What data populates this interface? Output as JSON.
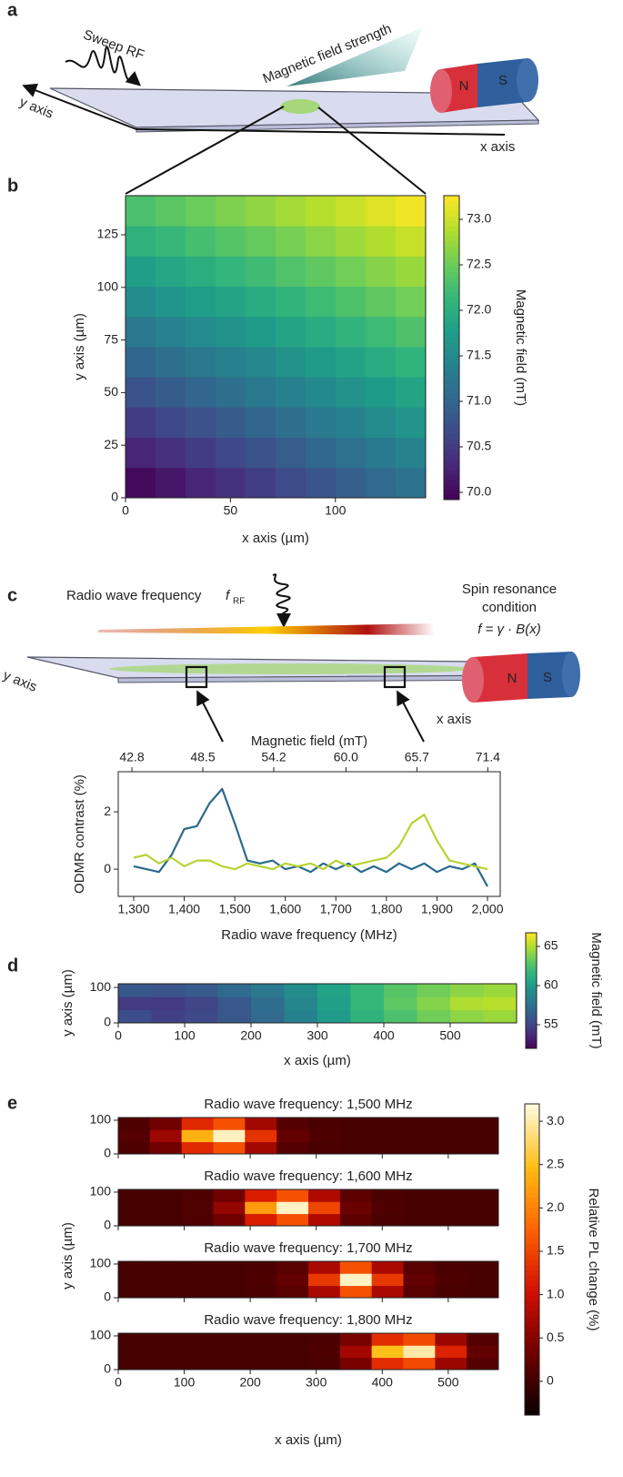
{
  "panel_labels": [
    "a",
    "b",
    "c",
    "d",
    "e"
  ],
  "diagram_a": {
    "sweep": "Sweep RF",
    "field_strength": "Magnetic field strength",
    "y_axis": "y axis",
    "x_axis": "x axis",
    "north": "N",
    "south": "S"
  },
  "diagram_c": {
    "rf_label": "Radio wave frequency",
    "rf_symbol": "f",
    "rf_subscript": "RF",
    "condition_1": "Spin resonance",
    "condition_2": "condition",
    "formula": "f = γ · B(x)",
    "y_axis": "y axis",
    "x_axis": "x axis",
    "north": "N",
    "south": "S"
  },
  "chart_data": [
    {
      "type": "heatmap",
      "x_label": "x axis (µm)",
      "y_label": "y axis (µm)",
      "xlim": [
        0,
        143
      ],
      "ylim": [
        0,
        143.6
      ],
      "xticks": [
        0,
        50,
        100
      ],
      "yticks": [
        0,
        25,
        50,
        75,
        100,
        125
      ],
      "values": [
        [
          70.0,
          70.13,
          70.27,
          70.4,
          70.53,
          70.67,
          70.8,
          70.93,
          71.06,
          71.2
        ],
        [
          70.26,
          70.39,
          70.52,
          70.64,
          70.77,
          70.9,
          71.03,
          71.16,
          71.29,
          71.42
        ],
        [
          70.51,
          70.64,
          70.76,
          70.89,
          71.01,
          71.14,
          71.27,
          71.39,
          71.52,
          71.64
        ],
        [
          70.77,
          70.89,
          71.01,
          71.14,
          71.26,
          71.38,
          71.5,
          71.62,
          71.75,
          71.87
        ],
        [
          71.02,
          71.14,
          71.26,
          71.37,
          71.49,
          71.61,
          71.73,
          71.85,
          71.97,
          72.08
        ],
        [
          71.28,
          71.4,
          71.51,
          71.63,
          71.74,
          71.86,
          71.97,
          72.09,
          72.2,
          72.32
        ],
        [
          71.54,
          71.65,
          71.76,
          71.87,
          71.98,
          72.09,
          72.2,
          72.31,
          72.43,
          72.54
        ],
        [
          71.79,
          71.9,
          72.0,
          72.11,
          72.22,
          72.33,
          72.43,
          72.54,
          72.65,
          72.75
        ],
        [
          72.05,
          72.15,
          72.26,
          72.36,
          72.46,
          72.57,
          72.67,
          72.77,
          72.87,
          72.98
        ],
        [
          72.3,
          72.4,
          72.5,
          72.6,
          72.7,
          72.8,
          72.9,
          73.0,
          73.1,
          73.2
        ]
      ],
      "colorbar": {
        "label": "Magnetic field (mT)",
        "colormap": "viridis",
        "lim": [
          69.92,
          73.26
        ],
        "ticks": [
          {
            "value": 70,
            "label": "70.0"
          },
          70.5,
          {
            "value": 71,
            "label": "71.0"
          },
          71.5,
          {
            "value": 72,
            "label": "72.0"
          },
          72.5,
          {
            "value": 73,
            "label": "73.0"
          }
        ]
      }
    },
    {
      "type": "line",
      "x_label": "Radio wave frequency (MHz)",
      "y_label": "ODMR contrast (%)",
      "x2_label": "Magnetic field (mT)",
      "xlim": [
        1269.4,
        2025.2
      ],
      "ylim": [
        -0.95,
        3.4
      ],
      "x2lim": [
        41.7,
        72.4
      ],
      "xticks": [
        {
          "value": 1300,
          "label": "1,300"
        },
        {
          "value": 1400,
          "label": "1,400"
        },
        {
          "value": 1500,
          "label": "1,500"
        },
        {
          "value": 1600,
          "label": "1,600"
        },
        {
          "value": 1700,
          "label": "1,700"
        },
        {
          "value": 1800,
          "label": "1,800"
        },
        {
          "value": 1900,
          "label": "1,900"
        },
        {
          "value": 2000,
          "label": "2,000"
        }
      ],
      "x2ticks": [
        42.8,
        48.5,
        54.2,
        {
          "value": 60,
          "label": "60.0"
        },
        65.7,
        71.4
      ],
      "yticks": [
        0,
        2
      ],
      "x": [
        1300,
        1325,
        1350,
        1375,
        1400,
        1425,
        1450,
        1475,
        1500,
        1525,
        1550,
        1575,
        1600,
        1625,
        1650,
        1675,
        1700,
        1725,
        1750,
        1775,
        1800,
        1825,
        1850,
        1875,
        1900,
        1925,
        1950,
        1975,
        2000
      ],
      "series": [
        {
          "color": "#2b6a8c",
          "values": [
            0.1,
            0.0,
            -0.1,
            0.5,
            1.4,
            1.5,
            2.3,
            2.8,
            1.6,
            0.3,
            0.2,
            0.3,
            0.0,
            0.1,
            -0.1,
            0.2,
            0.0,
            0.2,
            -0.1,
            0.1,
            -0.1,
            0.2,
            0.0,
            0.2,
            -0.1,
            0.1,
            0.0,
            0.2,
            -0.6
          ]
        },
        {
          "color": "#b6d334",
          "values": [
            0.4,
            0.5,
            0.2,
            0.4,
            0.1,
            0.3,
            0.3,
            0.1,
            0.0,
            0.2,
            0.1,
            0.0,
            0.2,
            0.1,
            0.2,
            0.0,
            0.3,
            0.1,
            0.2,
            0.3,
            0.4,
            0.8,
            1.6,
            1.9,
            1.0,
            0.3,
            0.2,
            0.1,
            0.0
          ]
        }
      ]
    },
    {
      "type": "heatmap",
      "x_label": "x axis (µm)",
      "y_label": "y axis (µm)",
      "xlim": [
        0,
        600
      ],
      "ylim": [
        0,
        110.5
      ],
      "xticks": [
        0,
        100,
        200,
        300,
        400,
        500
      ],
      "yticks": [
        0,
        100
      ],
      "values": [
        [
          55.5,
          54.8,
          55.2,
          56,
          57,
          58.5,
          60,
          61.5,
          62.5,
          63.5,
          64.2,
          64.5
        ],
        [
          54.5,
          54.5,
          55,
          56,
          57.2,
          58.8,
          60.3,
          61.8,
          63,
          64,
          65,
          65.2
        ],
        [
          56,
          55.8,
          56.2,
          57,
          58,
          59.2,
          60.5,
          61.8,
          62.8,
          63.5,
          64.2,
          64.5
        ]
      ],
      "colorbar": {
        "label": "Magnetic field (mT)",
        "colormap": "viridis",
        "lim": [
          51.98,
          66.74
        ],
        "ticks": [
          55,
          60,
          65
        ]
      }
    },
    {
      "type": "heatmap",
      "x_label": "x axis (µm)",
      "y_label": "y axis (µm)",
      "xlim": [
        0,
        576
      ],
      "ylim": [
        0,
        108
      ],
      "xticks": [
        0,
        100,
        200,
        300,
        400,
        500
      ],
      "yticks": [
        0,
        100
      ],
      "panels": [
        {
          "title": "Radio wave frequency: 1,500 MHz",
          "values": [
            [
              0.1,
              0.35,
              1.25,
              1.6,
              0.7,
              0.15,
              0.08,
              0.05,
              0.05,
              0.05,
              0.05,
              0.05
            ],
            [
              0.15,
              0.66,
              2.39,
              3.08,
              1.34,
              0.26,
              0.1,
              0.05,
              0.05,
              0.05,
              0.05,
              0.05
            ],
            [
              0.1,
              0.35,
              1.25,
              1.6,
              0.7,
              0.15,
              0.08,
              0.05,
              0.05,
              0.05,
              0.05,
              0.05
            ]
          ]
        },
        {
          "title": "Radio wave frequency: 1,600 MHz",
          "values": [
            [
              0.05,
              0.05,
              0.1,
              0.35,
              1.15,
              1.6,
              0.8,
              0.2,
              0.08,
              0.05,
              0.05,
              0.05
            ],
            [
              0.05,
              0.05,
              0.12,
              0.6,
              2.2,
              3.1,
              1.5,
              0.3,
              0.1,
              0.05,
              0.05,
              0.05
            ],
            [
              0.05,
              0.05,
              0.1,
              0.35,
              1.15,
              1.6,
              0.8,
              0.2,
              0.08,
              0.05,
              0.05,
              0.05
            ]
          ]
        },
        {
          "title": "Radio wave frequency: 1,700 MHz",
          "values": [
            [
              0.05,
              0.05,
              0.05,
              0.05,
              0.08,
              0.18,
              0.75,
              1.6,
              0.75,
              0.18,
              0.08,
              0.05
            ],
            [
              0.05,
              0.05,
              0.05,
              0.05,
              0.1,
              0.25,
              1.4,
              3.1,
              1.4,
              0.25,
              0.1,
              0.05
            ],
            [
              0.05,
              0.05,
              0.05,
              0.05,
              0.08,
              0.18,
              0.75,
              1.6,
              0.75,
              0.18,
              0.08,
              0.05
            ]
          ]
        },
        {
          "title": "Radio wave frequency: 1,800 MHz",
          "values": [
            [
              0.05,
              0.05,
              0.05,
              0.05,
              0.05,
              0.05,
              0.08,
              0.4,
              1.3,
              1.55,
              0.65,
              0.15
            ],
            [
              0.05,
              0.05,
              0.05,
              0.05,
              0.05,
              0.05,
              0.1,
              0.7,
              2.5,
              3.0,
              1.2,
              0.25
            ],
            [
              0.05,
              0.05,
              0.05,
              0.05,
              0.05,
              0.05,
              0.08,
              0.4,
              1.3,
              1.55,
              0.65,
              0.15
            ]
          ]
        }
      ],
      "colorbar": {
        "label": "Relative PL change (%)",
        "colormap": "hot",
        "lim": [
          -0.39,
          3.2
        ],
        "ticks": [
          0,
          0.5,
          {
            "value": 1,
            "label": "1.0"
          },
          1.5,
          {
            "value": 2,
            "label": "2.0"
          },
          2.5,
          {
            "value": 3,
            "label": "3.0"
          }
        ]
      }
    }
  ]
}
